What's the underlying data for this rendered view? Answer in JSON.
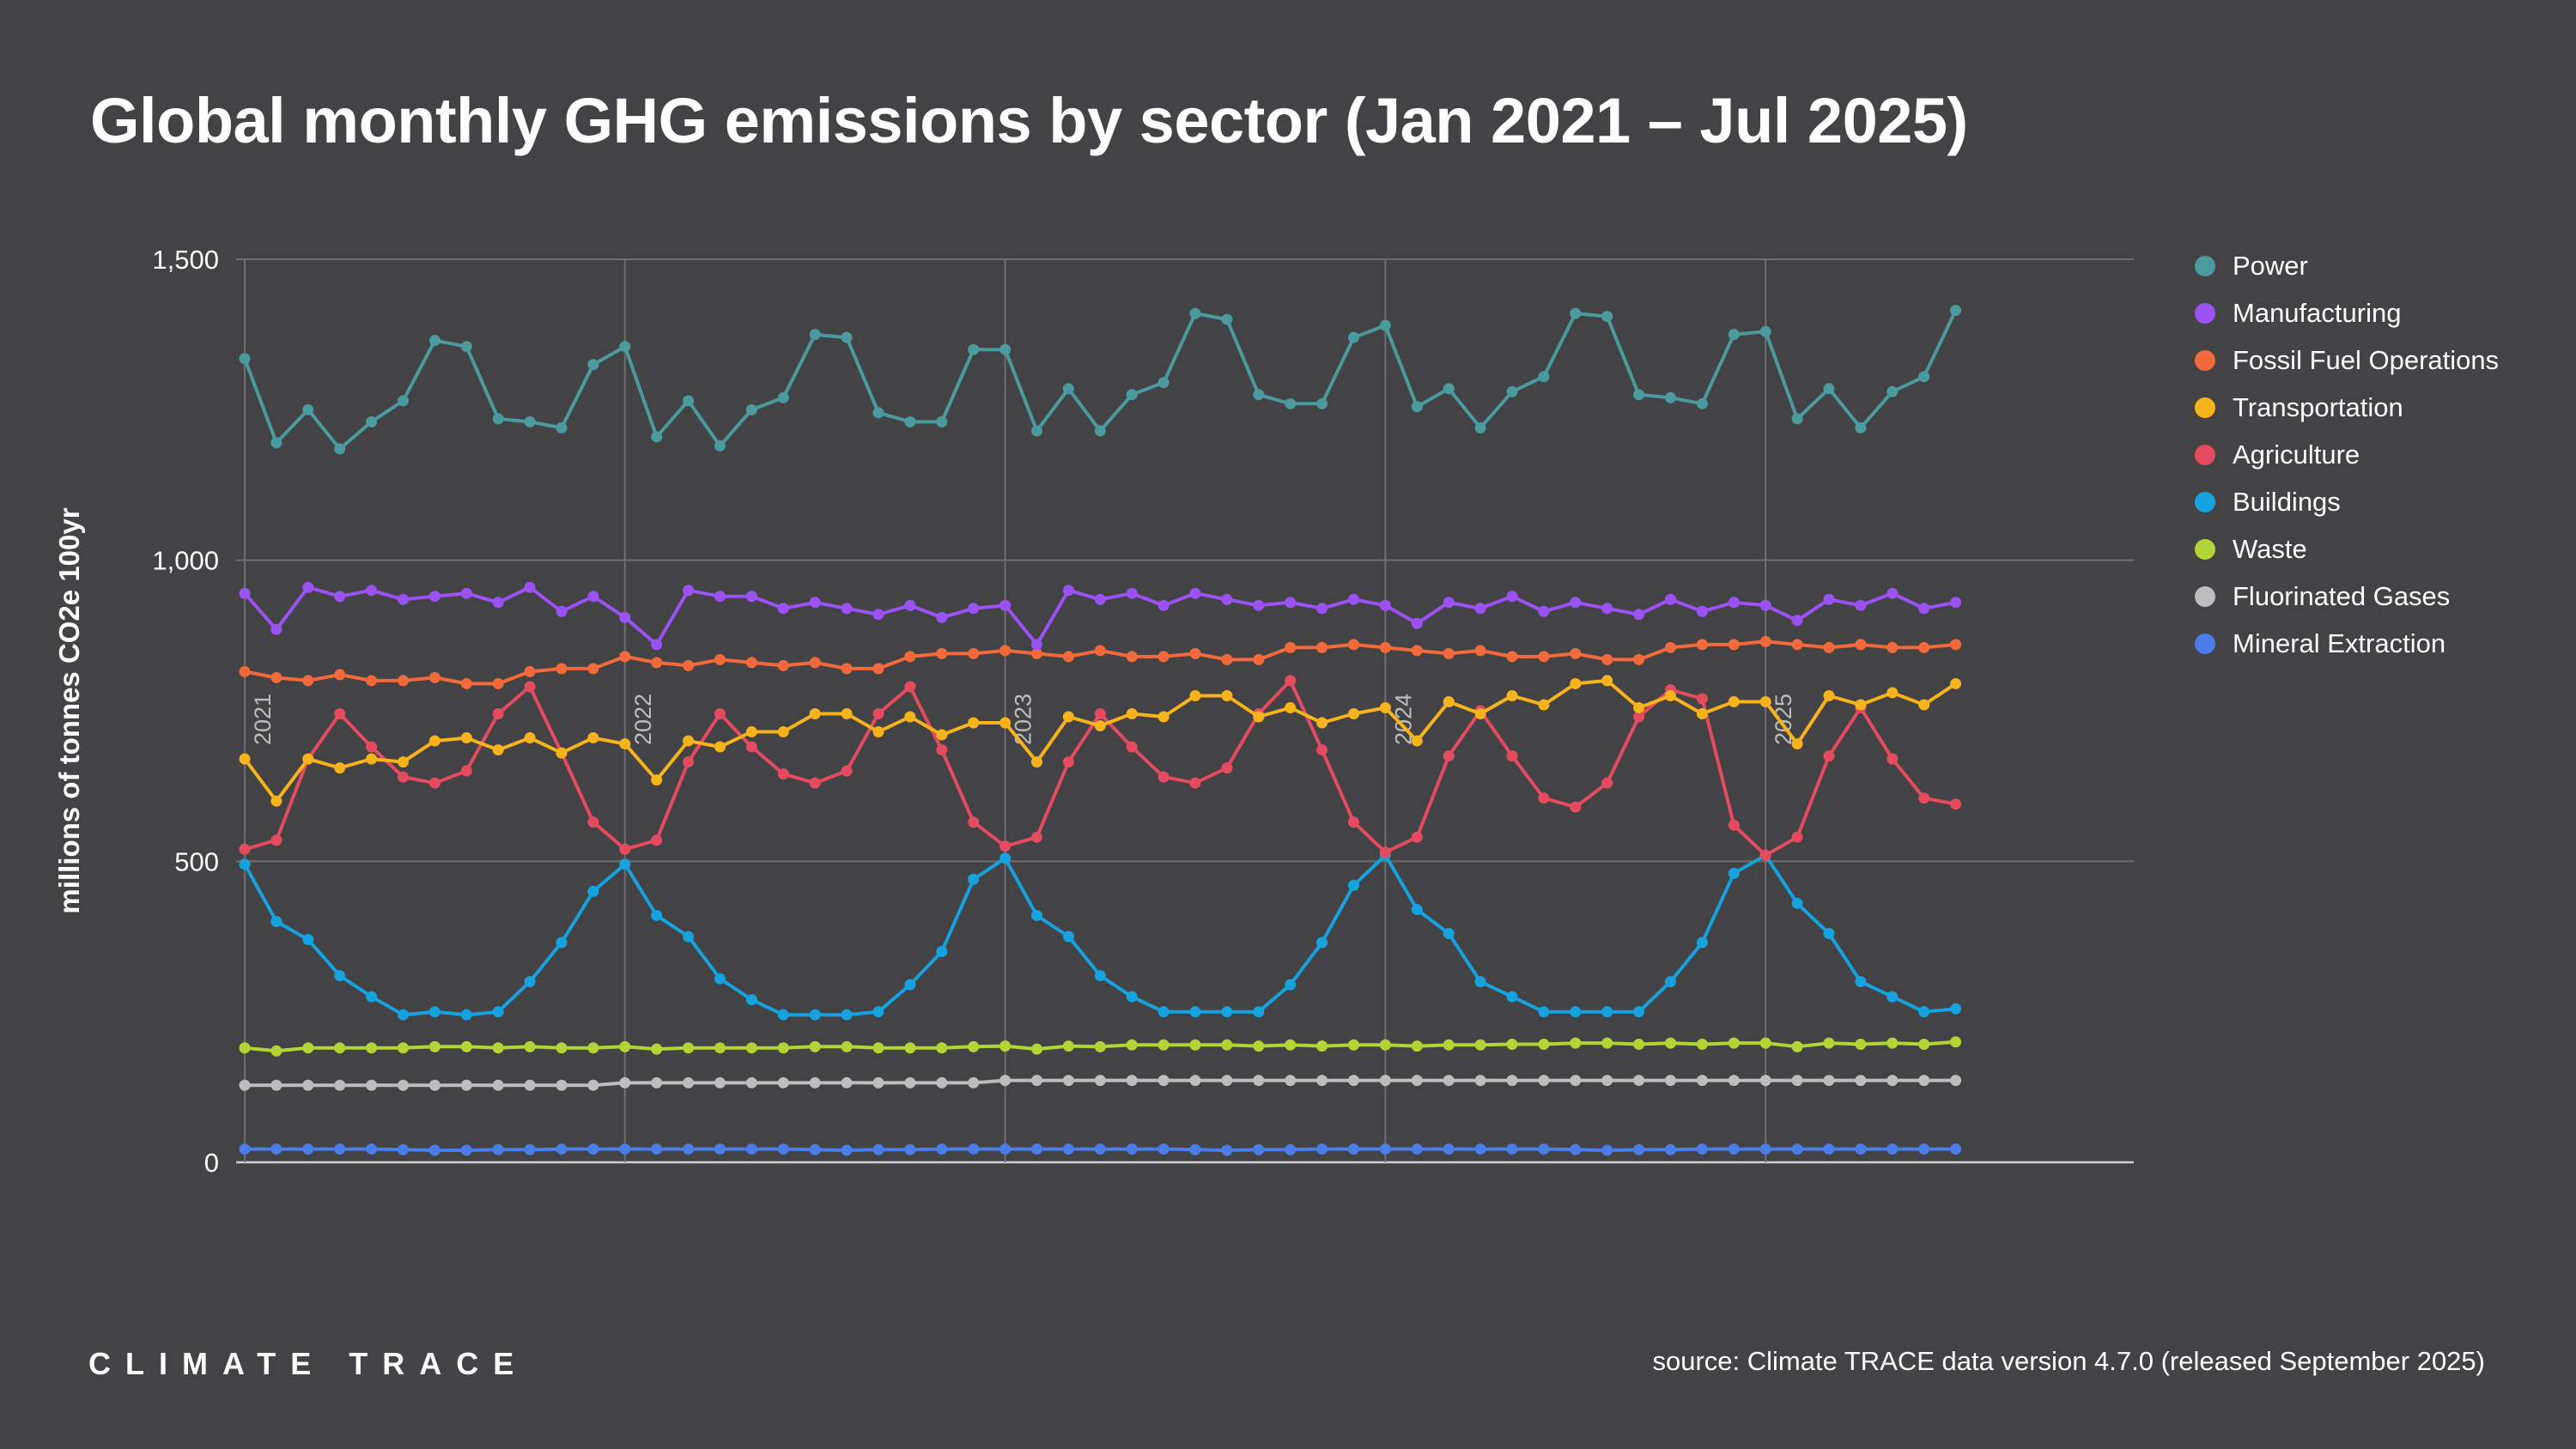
{
  "title": "Global monthly GHG emissions by sector (Jan 2021 – Jul 2025)",
  "brand": "CLIMATE TRACE",
  "source": "source: Climate TRACE data version 4.7.0 (released September 2025)",
  "colors": {
    "background": "#434345",
    "grid": "#6e6e72",
    "axis": "#bdbdbd"
  },
  "chart_data": {
    "type": "line",
    "title": "Global monthly GHG emissions by sector (Jan 2021 – Jul 2025)",
    "ylabel": "millions of tonnes CO2e 100yr",
    "xlabel": "",
    "ylim": [
      0,
      1500
    ],
    "yticks": [
      0,
      500,
      1000,
      1500
    ],
    "ytick_labels": [
      "0",
      "500",
      "1,000",
      "1,500"
    ],
    "x_start": "2021-01",
    "x_end": "2025-07",
    "year_markers": [
      "2021",
      "2022",
      "2023",
      "2024",
      "2025"
    ],
    "grid": true,
    "legend_position": "right",
    "series": [
      {
        "name": "Power",
        "color": "#4a9a9e",
        "values": [
          1335,
          1195,
          1250,
          1185,
          1230,
          1265,
          1365,
          1355,
          1235,
          1230,
          1220,
          1325,
          1355,
          1205,
          1265,
          1190,
          1250,
          1270,
          1375,
          1370,
          1245,
          1230,
          1230,
          1350,
          1350,
          1215,
          1285,
          1215,
          1275,
          1295,
          1410,
          1400,
          1275,
          1260,
          1260,
          1370,
          1390,
          1255,
          1285,
          1220,
          1280,
          1305,
          1410,
          1405,
          1275,
          1270,
          1260,
          1375,
          1380,
          1235,
          1285,
          1220,
          1280,
          1305,
          1415
        ]
      },
      {
        "name": "Manufacturing",
        "color": "#9b52f5",
        "values": [
          945,
          885,
          955,
          940,
          950,
          935,
          940,
          945,
          930,
          955,
          915,
          940,
          905,
          860,
          950,
          940,
          940,
          920,
          930,
          920,
          910,
          925,
          905,
          920,
          925,
          860,
          950,
          935,
          945,
          925,
          945,
          935,
          925,
          930,
          920,
          935,
          925,
          895,
          930,
          920,
          940,
          915,
          930,
          920,
          910,
          935,
          915,
          930,
          925,
          900,
          935,
          925,
          945,
          920,
          930
        ]
      },
      {
        "name": "Fossil Fuel Operations",
        "color": "#f26a3c",
        "values": [
          815,
          805,
          800,
          810,
          800,
          800,
          805,
          795,
          795,
          815,
          820,
          820,
          840,
          830,
          825,
          835,
          830,
          825,
          830,
          820,
          820,
          840,
          845,
          845,
          850,
          845,
          840,
          850,
          840,
          840,
          845,
          835,
          835,
          855,
          855,
          860,
          855,
          850,
          845,
          850,
          840,
          840,
          845,
          835,
          835,
          855,
          860,
          860,
          865,
          860,
          855,
          860,
          855,
          855,
          860
        ]
      },
      {
        "name": "Transportation",
        "color": "#f6b31c",
        "values": [
          670,
          600,
          670,
          655,
          670,
          665,
          700,
          705,
          685,
          705,
          680,
          705,
          695,
          635,
          700,
          690,
          715,
          715,
          745,
          745,
          715,
          740,
          710,
          730,
          730,
          665,
          740,
          725,
          745,
          740,
          775,
          775,
          740,
          755,
          730,
          745,
          755,
          700,
          765,
          745,
          775,
          760,
          795,
          800,
          755,
          775,
          745,
          765,
          765,
          695,
          775,
          760,
          780,
          760,
          795
        ]
      },
      {
        "name": "Agriculture",
        "color": "#e54b60",
        "values": [
          520,
          535,
          670,
          745,
          690,
          640,
          630,
          650,
          745,
          790,
          680,
          565,
          520,
          535,
          665,
          745,
          690,
          645,
          630,
          650,
          745,
          790,
          685,
          565,
          525,
          540,
          665,
          745,
          690,
          640,
          630,
          655,
          745,
          800,
          685,
          565,
          515,
          540,
          675,
          750,
          675,
          605,
          590,
          630,
          740,
          785,
          770,
          560,
          510,
          540,
          675,
          755,
          670,
          605,
          595
        ]
      },
      {
        "name": "Buildings",
        "color": "#15a2df",
        "values": [
          495,
          400,
          370,
          310,
          275,
          245,
          250,
          245,
          250,
          300,
          365,
          450,
          495,
          410,
          375,
          305,
          270,
          245,
          245,
          245,
          250,
          295,
          350,
          470,
          505,
          410,
          375,
          310,
          275,
          250,
          250,
          250,
          250,
          295,
          365,
          460,
          510,
          420,
          380,
          300,
          275,
          250,
          250,
          250,
          250,
          300,
          365,
          480,
          510,
          430,
          380,
          300,
          275,
          250,
          255
        ]
      },
      {
        "name": "Waste",
        "color": "#b2d435",
        "values": [
          190,
          185,
          190,
          190,
          190,
          190,
          192,
          192,
          190,
          192,
          190,
          190,
          192,
          188,
          190,
          190,
          190,
          190,
          192,
          192,
          190,
          190,
          190,
          192,
          193,
          188,
          193,
          192,
          195,
          195,
          195,
          195,
          193,
          195,
          193,
          195,
          195,
          193,
          195,
          195,
          196,
          196,
          198,
          198,
          196,
          198,
          196,
          198,
          198,
          192,
          198,
          196,
          198,
          196,
          200
        ]
      },
      {
        "name": "Fluorinated Gases",
        "color": "#bdbdbd",
        "values": [
          128,
          128,
          128,
          128,
          128,
          128,
          128,
          128,
          128,
          128,
          128,
          128,
          132,
          132,
          132,
          132,
          132,
          132,
          132,
          132,
          132,
          132,
          132,
          132,
          136,
          136,
          136,
          136,
          136,
          136,
          136,
          136,
          136,
          136,
          136,
          136,
          136,
          136,
          136,
          136,
          136,
          136,
          136,
          136,
          136,
          136,
          136,
          136,
          136,
          136,
          136,
          136,
          136,
          136,
          136
        ]
      },
      {
        "name": "Mineral Extraction",
        "color": "#4b7de8",
        "values": [
          22,
          22,
          22,
          22,
          22,
          21,
          20,
          20,
          21,
          21,
          22,
          22,
          22,
          22,
          22,
          22,
          22,
          22,
          21,
          20,
          21,
          21,
          22,
          22,
          22,
          22,
          22,
          22,
          22,
          22,
          21,
          20,
          21,
          21,
          22,
          22,
          22,
          22,
          22,
          22,
          22,
          22,
          21,
          20,
          21,
          21,
          22,
          22,
          22,
          22,
          22,
          22,
          22,
          22,
          22
        ]
      }
    ]
  }
}
